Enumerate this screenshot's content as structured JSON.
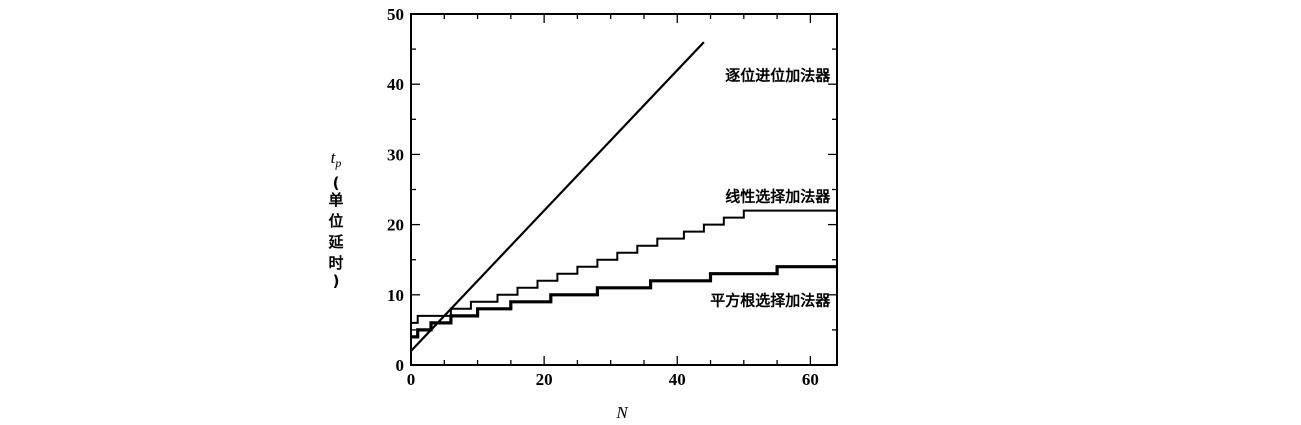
{
  "chart_data": {
    "type": "line",
    "xlabel": "N",
    "ylabel_symbol": "t",
    "ylabel_subscript": "p",
    "ylabel_unit": [
      "(",
      "单",
      "位",
      "延",
      "时",
      ")"
    ],
    "xlim": [
      0,
      64
    ],
    "ylim": [
      0,
      50
    ],
    "xticks": [
      0,
      20,
      40,
      60
    ],
    "yticks": [
      0,
      10,
      20,
      30,
      40,
      50
    ],
    "grid": false,
    "legend": "none",
    "series": [
      {
        "name": "逐位进位加法器",
        "style": "straight",
        "color": "#000000",
        "width": 2.2,
        "points": [
          [
            0,
            2
          ],
          [
            44,
            46
          ]
        ],
        "label_at": [
          63,
          40.5
        ]
      },
      {
        "name": "线性选择加法器",
        "style": "step",
        "color": "#000000",
        "width": 2,
        "points": [
          [
            0,
            6
          ],
          [
            1,
            6
          ],
          [
            1,
            7
          ],
          [
            6,
            7
          ],
          [
            6,
            8
          ],
          [
            9,
            8
          ],
          [
            9,
            9
          ],
          [
            13,
            9
          ],
          [
            13,
            10
          ],
          [
            16,
            10
          ],
          [
            16,
            11
          ],
          [
            19,
            11
          ],
          [
            19,
            12
          ],
          [
            22,
            12
          ],
          [
            22,
            13
          ],
          [
            25,
            13
          ],
          [
            25,
            14
          ],
          [
            28,
            14
          ],
          [
            28,
            15
          ],
          [
            31,
            15
          ],
          [
            31,
            16
          ],
          [
            34,
            16
          ],
          [
            34,
            17
          ],
          [
            37,
            17
          ],
          [
            37,
            18
          ],
          [
            41,
            18
          ],
          [
            41,
            19
          ],
          [
            44,
            19
          ],
          [
            44,
            20
          ],
          [
            47,
            20
          ],
          [
            47,
            21
          ],
          [
            50,
            21
          ],
          [
            50,
            22
          ],
          [
            64,
            22
          ]
        ],
        "label_at": [
          63,
          23.3
        ]
      },
      {
        "name": "平方根选择加法器",
        "style": "step",
        "color": "#000000",
        "width": 3.2,
        "points": [
          [
            0,
            4
          ],
          [
            1,
            4
          ],
          [
            1,
            5
          ],
          [
            3,
            5
          ],
          [
            3,
            6
          ],
          [
            6,
            6
          ],
          [
            6,
            7
          ],
          [
            10,
            7
          ],
          [
            10,
            8
          ],
          [
            15,
            8
          ],
          [
            15,
            9
          ],
          [
            21,
            9
          ],
          [
            21,
            10
          ],
          [
            28,
            10
          ],
          [
            28,
            11
          ],
          [
            36,
            11
          ],
          [
            36,
            12
          ],
          [
            45,
            12
          ],
          [
            45,
            13
          ],
          [
            55,
            13
          ],
          [
            55,
            14
          ],
          [
            64,
            14
          ]
        ],
        "label_at": [
          63,
          8.5
        ]
      }
    ]
  }
}
